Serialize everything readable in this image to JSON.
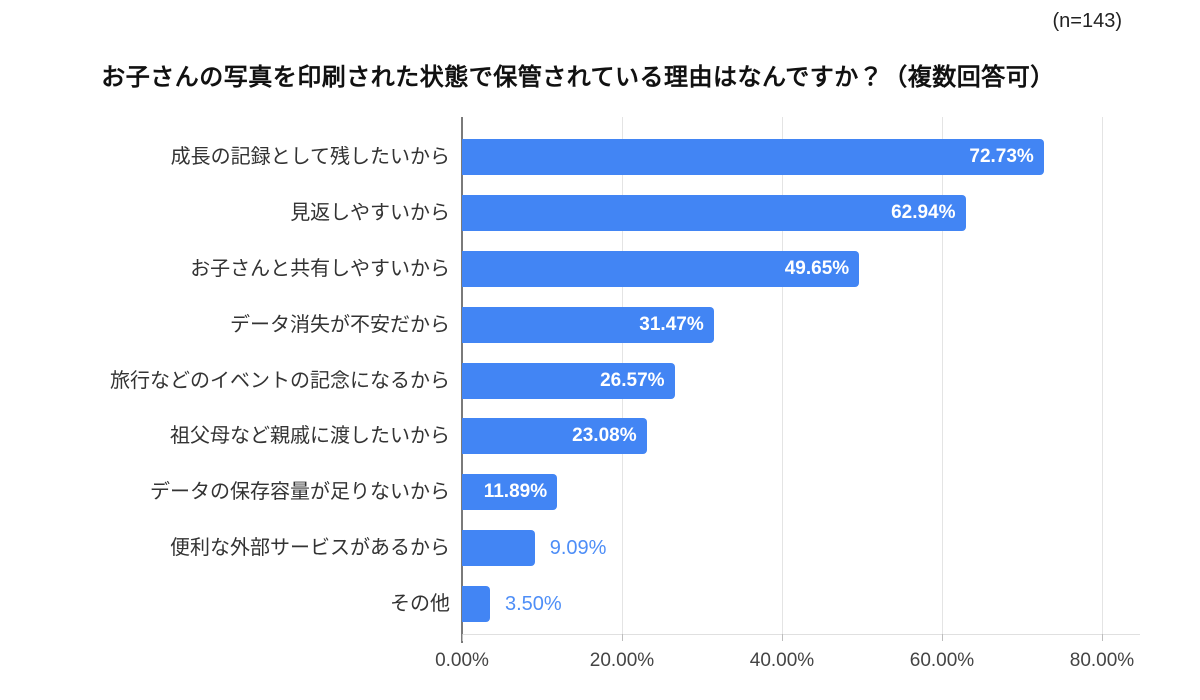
{
  "header": {
    "sample_size": "(n=143)"
  },
  "chart_data": {
    "type": "bar",
    "orientation": "horizontal",
    "title": "お子さんの写真を印刷された状態で保管されている理由はなんですか？（複数回答可）",
    "categories": [
      "成長の記録として残したいから",
      "見返しやすいから",
      "お子さんと共有しやすいから",
      "データ消失が不安だから",
      "旅行などのイベントの記念になるから",
      "祖父母など親戚に渡したいから",
      "データの保存容量が足りないから",
      "便利な外部サービスがあるから",
      "その他"
    ],
    "values": [
      72.73,
      62.94,
      49.65,
      31.47,
      26.57,
      23.08,
      11.89,
      9.09,
      3.5
    ],
    "value_labels": [
      "72.73%",
      "62.94%",
      "49.65%",
      "31.47%",
      "26.57%",
      "23.08%",
      "11.89%",
      "9.09%",
      "3.50%"
    ],
    "xlim": [
      0,
      80
    ],
    "x_ticks": [
      {
        "value": 0,
        "label": "0.00%"
      },
      {
        "value": 20,
        "label": "20.00%"
      },
      {
        "value": 40,
        "label": "40.00%"
      },
      {
        "value": 60,
        "label": "60.00%"
      },
      {
        "value": 80,
        "label": "80.00%"
      }
    ],
    "grid": true,
    "legend": "none",
    "colors": {
      "bar": "#4285F4",
      "value_label_inside": "#ffffff",
      "value_label_outside": "#4e8ef7",
      "gridline": "#e4e4e4",
      "axis_line": "#7a7a7a",
      "category_label": "#333333",
      "tick_label": "#444444",
      "title": "#111111"
    }
  }
}
